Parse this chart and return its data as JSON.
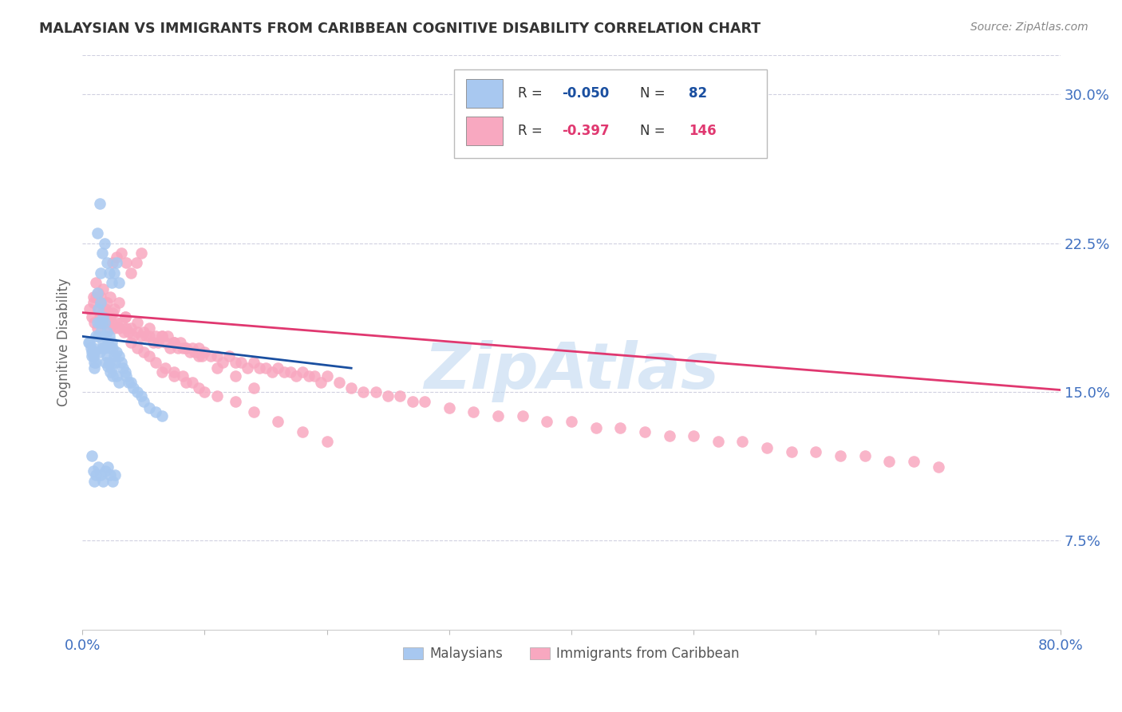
{
  "title": "MALAYSIAN VS IMMIGRANTS FROM CARIBBEAN COGNITIVE DISABILITY CORRELATION CHART",
  "source": "Source: ZipAtlas.com",
  "ylabel": "Cognitive Disability",
  "yticks": [
    "7.5%",
    "15.0%",
    "22.5%",
    "30.0%"
  ],
  "ytick_vals": [
    0.075,
    0.15,
    0.225,
    0.3
  ],
  "xmin": 0.0,
  "xmax": 0.8,
  "ymin": 0.03,
  "ymax": 0.32,
  "blue_color": "#a8c8f0",
  "pink_color": "#f8a8c0",
  "blue_line_color": "#1a4fa0",
  "pink_line_color": "#e03870",
  "watermark_color": "#c0d8f0",
  "grid_color": "#d0d0e0",
  "axis_color": "#4070c0",
  "blue_scatter_x": [
    0.005,
    0.006,
    0.007,
    0.008,
    0.008,
    0.009,
    0.009,
    0.01,
    0.01,
    0.01,
    0.011,
    0.011,
    0.012,
    0.012,
    0.013,
    0.013,
    0.014,
    0.014,
    0.015,
    0.015,
    0.015,
    0.016,
    0.016,
    0.017,
    0.017,
    0.018,
    0.018,
    0.019,
    0.019,
    0.02,
    0.02,
    0.021,
    0.021,
    0.022,
    0.022,
    0.023,
    0.023,
    0.024,
    0.024,
    0.025,
    0.025,
    0.026,
    0.027,
    0.028,
    0.028,
    0.03,
    0.03,
    0.032,
    0.033,
    0.035,
    0.036,
    0.038,
    0.04,
    0.042,
    0.045,
    0.048,
    0.05,
    0.055,
    0.06,
    0.065,
    0.012,
    0.014,
    0.016,
    0.018,
    0.02,
    0.022,
    0.024,
    0.026,
    0.028,
    0.03,
    0.008,
    0.009,
    0.01,
    0.011,
    0.013,
    0.015,
    0.017,
    0.019,
    0.021,
    0.023,
    0.025,
    0.027
  ],
  "blue_scatter_y": [
    0.175,
    0.175,
    0.172,
    0.17,
    0.168,
    0.172,
    0.168,
    0.17,
    0.165,
    0.162,
    0.178,
    0.165,
    0.2,
    0.185,
    0.192,
    0.178,
    0.185,
    0.17,
    0.21,
    0.195,
    0.18,
    0.185,
    0.172,
    0.188,
    0.175,
    0.185,
    0.172,
    0.178,
    0.165,
    0.18,
    0.168,
    0.175,
    0.163,
    0.178,
    0.165,
    0.172,
    0.16,
    0.175,
    0.162,
    0.172,
    0.158,
    0.168,
    0.165,
    0.17,
    0.158,
    0.168,
    0.155,
    0.165,
    0.162,
    0.16,
    0.158,
    0.155,
    0.155,
    0.152,
    0.15,
    0.148,
    0.145,
    0.142,
    0.14,
    0.138,
    0.23,
    0.245,
    0.22,
    0.225,
    0.215,
    0.21,
    0.205,
    0.21,
    0.215,
    0.205,
    0.118,
    0.11,
    0.105,
    0.108,
    0.112,
    0.108,
    0.105,
    0.11,
    0.112,
    0.108,
    0.105,
    0.108
  ],
  "pink_scatter_x": [
    0.006,
    0.008,
    0.009,
    0.01,
    0.011,
    0.012,
    0.013,
    0.014,
    0.015,
    0.016,
    0.017,
    0.018,
    0.019,
    0.02,
    0.021,
    0.022,
    0.023,
    0.024,
    0.025,
    0.026,
    0.028,
    0.03,
    0.032,
    0.034,
    0.036,
    0.038,
    0.04,
    0.042,
    0.045,
    0.048,
    0.05,
    0.052,
    0.055,
    0.058,
    0.06,
    0.062,
    0.065,
    0.068,
    0.07,
    0.072,
    0.075,
    0.078,
    0.08,
    0.082,
    0.085,
    0.088,
    0.09,
    0.092,
    0.095,
    0.098,
    0.1,
    0.105,
    0.11,
    0.115,
    0.12,
    0.125,
    0.13,
    0.135,
    0.14,
    0.145,
    0.15,
    0.155,
    0.16,
    0.165,
    0.17,
    0.175,
    0.18,
    0.185,
    0.19,
    0.195,
    0.2,
    0.21,
    0.22,
    0.23,
    0.24,
    0.25,
    0.26,
    0.27,
    0.28,
    0.3,
    0.32,
    0.34,
    0.36,
    0.38,
    0.4,
    0.42,
    0.44,
    0.46,
    0.48,
    0.5,
    0.52,
    0.54,
    0.56,
    0.58,
    0.6,
    0.62,
    0.64,
    0.66,
    0.68,
    0.7,
    0.009,
    0.011,
    0.013,
    0.015,
    0.017,
    0.02,
    0.023,
    0.026,
    0.03,
    0.035,
    0.04,
    0.045,
    0.05,
    0.055,
    0.06,
    0.068,
    0.075,
    0.082,
    0.09,
    0.1,
    0.035,
    0.045,
    0.055,
    0.065,
    0.075,
    0.085,
    0.095,
    0.11,
    0.125,
    0.14,
    0.065,
    0.075,
    0.085,
    0.095,
    0.11,
    0.125,
    0.14,
    0.16,
    0.18,
    0.2,
    0.025,
    0.028,
    0.032,
    0.036,
    0.04,
    0.044,
    0.048
  ],
  "pink_scatter_y": [
    0.192,
    0.188,
    0.195,
    0.185,
    0.198,
    0.182,
    0.192,
    0.188,
    0.195,
    0.185,
    0.19,
    0.188,
    0.192,
    0.185,
    0.19,
    0.182,
    0.188,
    0.185,
    0.19,
    0.182,
    0.185,
    0.182,
    0.185,
    0.18,
    0.182,
    0.18,
    0.182,
    0.178,
    0.18,
    0.178,
    0.18,
    0.178,
    0.178,
    0.175,
    0.178,
    0.175,
    0.178,
    0.175,
    0.178,
    0.172,
    0.175,
    0.172,
    0.175,
    0.172,
    0.172,
    0.17,
    0.172,
    0.17,
    0.172,
    0.168,
    0.17,
    0.168,
    0.168,
    0.165,
    0.168,
    0.165,
    0.165,
    0.162,
    0.165,
    0.162,
    0.162,
    0.16,
    0.162,
    0.16,
    0.16,
    0.158,
    0.16,
    0.158,
    0.158,
    0.155,
    0.158,
    0.155,
    0.152,
    0.15,
    0.15,
    0.148,
    0.148,
    0.145,
    0.145,
    0.142,
    0.14,
    0.138,
    0.138,
    0.135,
    0.135,
    0.132,
    0.132,
    0.13,
    0.128,
    0.128,
    0.125,
    0.125,
    0.122,
    0.12,
    0.12,
    0.118,
    0.118,
    0.115,
    0.115,
    0.112,
    0.198,
    0.205,
    0.2,
    0.198,
    0.202,
    0.195,
    0.198,
    0.192,
    0.195,
    0.188,
    0.175,
    0.172,
    0.17,
    0.168,
    0.165,
    0.162,
    0.16,
    0.158,
    0.155,
    0.15,
    0.188,
    0.185,
    0.182,
    0.178,
    0.175,
    0.172,
    0.168,
    0.162,
    0.158,
    0.152,
    0.16,
    0.158,
    0.155,
    0.152,
    0.148,
    0.145,
    0.14,
    0.135,
    0.13,
    0.125,
    0.215,
    0.218,
    0.22,
    0.215,
    0.21,
    0.215,
    0.22
  ],
  "blue_trend_x": [
    0.0,
    0.22
  ],
  "blue_trend_y_start": 0.178,
  "blue_trend_y_end": 0.162,
  "pink_trend_x": [
    0.0,
    0.8
  ],
  "pink_trend_y_start": 0.19,
  "pink_trend_y_end": 0.151
}
